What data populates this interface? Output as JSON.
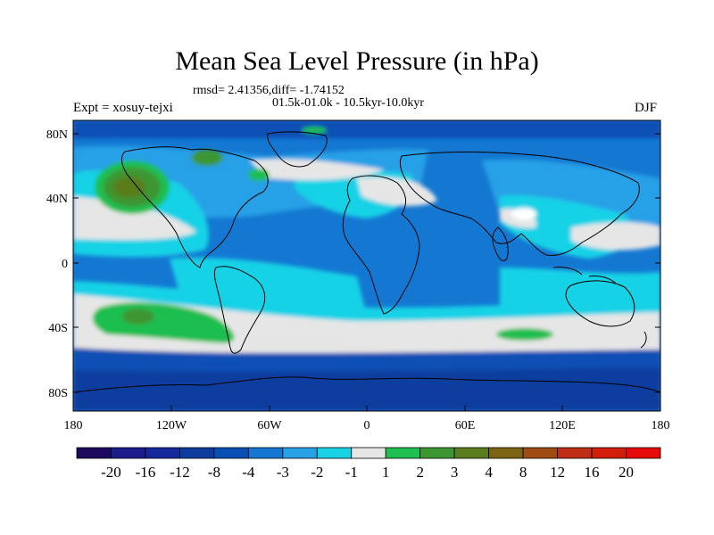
{
  "title": "Mean Sea Level Pressure (in hPa)",
  "stats_line": "rmsd= 2.41356,diff= -1.74152",
  "period_line": "01.5k-01.0k - 10.5kyr-10.0kyr",
  "experiment_label": "Expt = xosuy-tejxi",
  "season_label": "DJF",
  "lat_ticks": [
    "80N",
    "40N",
    "0",
    "40S",
    "80S"
  ],
  "lon_ticks": [
    "180",
    "120W",
    "60W",
    "0",
    "60E",
    "120E",
    "180"
  ],
  "colorbar": {
    "labels": [
      "-20",
      "-16",
      "-12",
      "-8",
      "-4",
      "-3",
      "-2",
      "-1",
      "1",
      "2",
      "3",
      "4",
      "8",
      "12",
      "16",
      "20"
    ],
    "colors": [
      "#1d0a5e",
      "#1c1c8c",
      "#15289e",
      "#0c3c9e",
      "#0a50b4",
      "#1478d2",
      "#28a0e6",
      "#19d2e6",
      "#e6e6e6",
      "#1ebe50",
      "#3c9632",
      "#5a7d1e",
      "#7d6414",
      "#a04b14",
      "#be2d14",
      "#d21e0a",
      "#e60a0a"
    ]
  },
  "palette": {
    "deep_blue": "#0a50b4",
    "mid_blue": "#1478d2",
    "light_blue": "#28a0e6",
    "cyan": "#19d2e6",
    "neutral": "#e6e6e6",
    "green": "#1ebe50",
    "dark_green": "#3c9632",
    "olive": "#5a7d1e"
  }
}
